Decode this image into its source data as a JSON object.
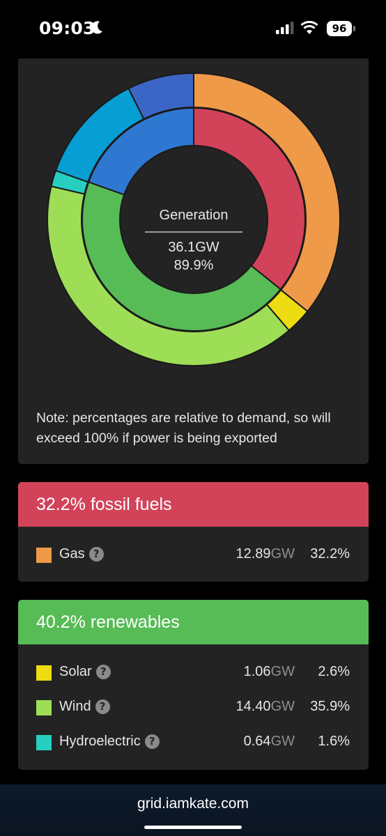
{
  "status_bar": {
    "time": "09:03",
    "battery": "96",
    "icons": [
      "moon-icon",
      "signal-icon",
      "wifi-icon",
      "battery-icon"
    ]
  },
  "chart": {
    "center_title": "Generation",
    "center_value": "36.1GW",
    "center_percent": "89.9%",
    "note": "Note: percentages are relative to demand, so will exceed 100% if power is being exported"
  },
  "chart_data": {
    "type": "pie",
    "outer_ring": [
      {
        "label": "Gas",
        "value": 32.2,
        "color": "#ef9a48"
      },
      {
        "label": "Solar",
        "value": 2.6,
        "color": "#ecdc11"
      },
      {
        "label": "Wind",
        "value": 35.9,
        "color": "#9ede56"
      },
      {
        "label": "Hydroelectric",
        "value": 1.6,
        "color": "#27cfc0"
      },
      {
        "value": 11.0,
        "color": "#079ed4"
      },
      {
        "value": 6.6,
        "color": "#3c66c5"
      }
    ],
    "inner_ring": [
      {
        "label": "fossil fuels",
        "value": 32.2,
        "color": "#d2435a"
      },
      {
        "label": "renewables",
        "value": 40.2,
        "color": "#57bb56"
      },
      {
        "value": 17.6,
        "color": "#2f78d2"
      }
    ],
    "total_percent": 89.9
  },
  "fossil": {
    "header": "32.2% fossil fuels",
    "rows": [
      {
        "label": "Gas",
        "gw": "12.89",
        "unit": "GW",
        "pct": "32.2%",
        "color": "#ef9a48"
      }
    ]
  },
  "renewables": {
    "header": "40.2% renewables",
    "rows": [
      {
        "label": "Solar",
        "gw": "1.06",
        "unit": "GW",
        "pct": "2.6%",
        "color": "#ecdc11"
      },
      {
        "label": "Wind",
        "gw": "14.40",
        "unit": "GW",
        "pct": "35.9%",
        "color": "#9ede56"
      },
      {
        "label": "Hydroelectric",
        "gw": "0.64",
        "unit": "GW",
        "pct": "1.6%",
        "color": "#27cfc0"
      }
    ]
  },
  "help_glyph": "?",
  "url": "grid.iamkate.com"
}
